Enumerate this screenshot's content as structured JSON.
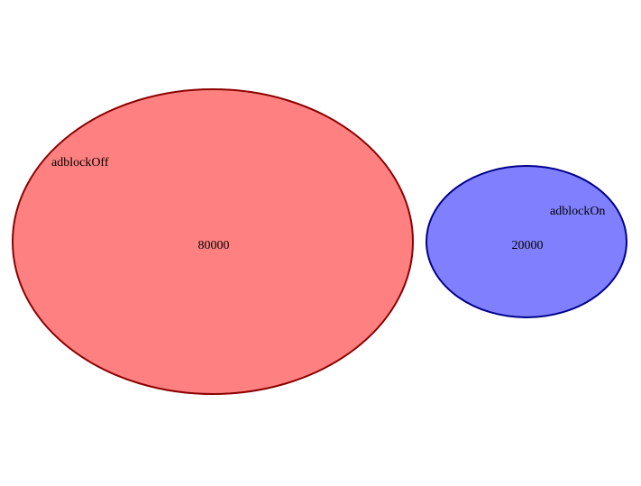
{
  "sets": [
    {
      "name": "adblockOff",
      "count": "80000",
      "fill_color": "#ff8080",
      "stroke_color": "#8b0000"
    },
    {
      "name": "adblockOn",
      "count": "20000",
      "fill_color": "#8080ff",
      "stroke_color": "#00008b"
    }
  ]
}
